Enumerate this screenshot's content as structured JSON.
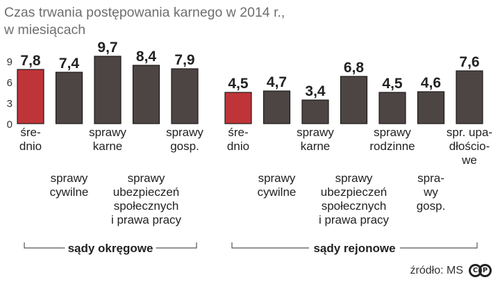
{
  "header": {
    "title_line1": "Czas trwania postępowania karnego w 2014 r.,",
    "title_line2": "w miesiącach"
  },
  "footer": {
    "source": "źródło: MS",
    "logo_text": "CP"
  },
  "colors": {
    "highlight_bar": "#bf3438",
    "normal_bar": "#4c4543",
    "bar_outline": "#1e1a19",
    "axis_text": "#333333",
    "label_text": "#222222",
    "bracket_line": "#555555"
  },
  "chart_data": {
    "type": "bar",
    "ylim": [
      0,
      10
    ],
    "yticks": [
      0,
      3,
      6,
      9
    ],
    "groups": [
      {
        "name": "sądy okręgowe",
        "categories": [
          {
            "label_lines": [
              "śre-",
              "dnio"
            ],
            "value": 7.8,
            "value_text": "7,8",
            "highlight": true,
            "label_row": 0
          },
          {
            "label_lines": [
              "sprawy",
              "cywilne"
            ],
            "value": 7.4,
            "value_text": "7,4",
            "highlight": false,
            "label_row": 1
          },
          {
            "label_lines": [
              "sprawy",
              "karne"
            ],
            "value": 9.7,
            "value_text": "9,7",
            "highlight": false,
            "label_row": 0
          },
          {
            "label_lines": [
              "sprawy",
              "ubezpieczeń",
              "społecznych",
              "i prawa pracy"
            ],
            "value": 8.4,
            "value_text": "8,4",
            "highlight": false,
            "label_row": 1
          },
          {
            "label_lines": [
              "sprawy",
              "gosp."
            ],
            "value": 7.9,
            "value_text": "7,9",
            "highlight": false,
            "label_row": 0
          }
        ]
      },
      {
        "name": "sądy rejonowe",
        "categories": [
          {
            "label_lines": [
              "śre-",
              "dnio"
            ],
            "value": 4.5,
            "value_text": "4,5",
            "highlight": true,
            "label_row": 0
          },
          {
            "label_lines": [
              "sprawy",
              "cywilne"
            ],
            "value": 4.7,
            "value_text": "4,7",
            "highlight": false,
            "label_row": 1
          },
          {
            "label_lines": [
              "sprawy",
              "karne"
            ],
            "value": 3.4,
            "value_text": "3,4",
            "highlight": false,
            "label_row": 0
          },
          {
            "label_lines": [
              "sprawy",
              "ubezpieczeń",
              "społecznych",
              "i prawa pracy"
            ],
            "value": 6.8,
            "value_text": "6,8",
            "highlight": false,
            "label_row": 1
          },
          {
            "label_lines": [
              "sprawy",
              "rodzinne"
            ],
            "value": 4.5,
            "value_text": "4,5",
            "highlight": false,
            "label_row": 0
          },
          {
            "label_lines": [
              "spra-",
              "wy",
              "gosp."
            ],
            "value": 4.6,
            "value_text": "4,6",
            "highlight": false,
            "label_row": 1
          },
          {
            "label_lines": [
              "spr. upa-",
              "dłościo-",
              "we"
            ],
            "value": 7.6,
            "value_text": "7,6",
            "highlight": false,
            "label_row": 0
          }
        ]
      }
    ]
  }
}
